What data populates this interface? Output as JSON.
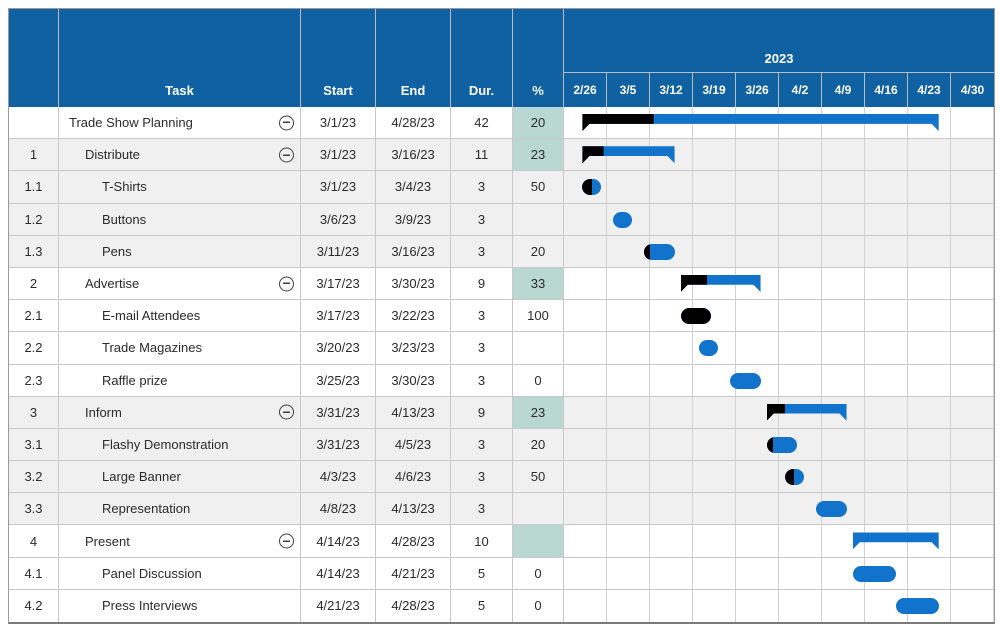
{
  "header": {
    "id": "",
    "task": "Task",
    "start": "Start",
    "end": "End",
    "dur": "Dur.",
    "pct": "%"
  },
  "timeline": {
    "year": "2023",
    "weeks": [
      "2/26",
      "3/5",
      "3/12",
      "3/19",
      "3/26",
      "4/2",
      "4/9",
      "4/16",
      "4/23",
      "4/30"
    ],
    "days_total": 70
  },
  "colors": {
    "header_blue": "#1061a1",
    "bar_blue": "#1173cb",
    "progress_black": "#000000",
    "pct_teal": "#b9d8d2",
    "row_shade": "#f0f0f0"
  },
  "chart_data": {
    "type": "gantt",
    "title": "2023",
    "week_labels": [
      "2/26",
      "3/5",
      "3/12",
      "3/19",
      "3/26",
      "4/2",
      "4/9",
      "4/16",
      "4/23",
      "4/30"
    ],
    "tasks": [
      {
        "id": "",
        "name": "Trade Show Planning",
        "indent": 0,
        "collapsible": true,
        "start": "3/1/23",
        "end": "4/28/23",
        "dur": "42",
        "pct": "20",
        "pct_teal": true,
        "shade": false,
        "bar": {
          "type": "summary",
          "from_day": 3,
          "to_day": 61,
          "progress": 20
        }
      },
      {
        "id": "1",
        "name": "Distribute",
        "indent": 1,
        "collapsible": true,
        "start": "3/1/23",
        "end": "3/16/23",
        "dur": "11",
        "pct": "23",
        "pct_teal": true,
        "shade": true,
        "bar": {
          "type": "summary",
          "from_day": 3,
          "to_day": 18,
          "progress": 23
        }
      },
      {
        "id": "1.1",
        "name": "T-Shirts",
        "indent": 2,
        "collapsible": false,
        "start": "3/1/23",
        "end": "3/4/23",
        "dur": "3",
        "pct": "50",
        "pct_teal": false,
        "shade": true,
        "bar": {
          "type": "pill",
          "from_day": 3,
          "to_day": 6,
          "progress": 50
        }
      },
      {
        "id": "1.2",
        "name": "Buttons",
        "indent": 2,
        "collapsible": false,
        "start": "3/6/23",
        "end": "3/9/23",
        "dur": "3",
        "pct": "",
        "pct_teal": false,
        "shade": true,
        "bar": {
          "type": "pill",
          "from_day": 8,
          "to_day": 11,
          "progress": 0
        }
      },
      {
        "id": "1.3",
        "name": "Pens",
        "indent": 2,
        "collapsible": false,
        "start": "3/11/23",
        "end": "3/16/23",
        "dur": "3",
        "pct": "20",
        "pct_teal": false,
        "shade": true,
        "bar": {
          "type": "pill",
          "from_day": 13,
          "to_day": 18,
          "progress": 20
        }
      },
      {
        "id": "2",
        "name": "Advertise",
        "indent": 1,
        "collapsible": true,
        "start": "3/17/23",
        "end": "3/30/23",
        "dur": "9",
        "pct": "33",
        "pct_teal": true,
        "shade": false,
        "bar": {
          "type": "summary",
          "from_day": 19,
          "to_day": 32,
          "progress": 33
        }
      },
      {
        "id": "2.1",
        "name": "E-mail Attendees",
        "indent": 2,
        "collapsible": false,
        "start": "3/17/23",
        "end": "3/22/23",
        "dur": "3",
        "pct": "100",
        "pct_teal": false,
        "shade": false,
        "bar": {
          "type": "pill",
          "from_day": 19,
          "to_day": 24,
          "progress": 100
        }
      },
      {
        "id": "2.2",
        "name": "Trade Magazines",
        "indent": 2,
        "collapsible": false,
        "start": "3/20/23",
        "end": "3/23/23",
        "dur": "3",
        "pct": "",
        "pct_teal": false,
        "shade": false,
        "bar": {
          "type": "pill",
          "from_day": 22,
          "to_day": 25,
          "progress": 0
        }
      },
      {
        "id": "2.3",
        "name": "Raffle prize",
        "indent": 2,
        "collapsible": false,
        "start": "3/25/23",
        "end": "3/30/23",
        "dur": "3",
        "pct": "0",
        "pct_teal": false,
        "shade": false,
        "bar": {
          "type": "pill",
          "from_day": 27,
          "to_day": 32,
          "progress": 0
        }
      },
      {
        "id": "3",
        "name": "Inform",
        "indent": 1,
        "collapsible": true,
        "start": "3/31/23",
        "end": "4/13/23",
        "dur": "9",
        "pct": "23",
        "pct_teal": true,
        "shade": true,
        "bar": {
          "type": "summary",
          "from_day": 33,
          "to_day": 46,
          "progress": 23
        }
      },
      {
        "id": "3.1",
        "name": "Flashy Demonstration",
        "indent": 2,
        "collapsible": false,
        "start": "3/31/23",
        "end": "4/5/23",
        "dur": "3",
        "pct": "20",
        "pct_teal": false,
        "shade": true,
        "bar": {
          "type": "pill",
          "from_day": 33,
          "to_day": 38,
          "progress": 20
        }
      },
      {
        "id": "3.2",
        "name": "Large Banner",
        "indent": 2,
        "collapsible": false,
        "start": "4/3/23",
        "end": "4/6/23",
        "dur": "3",
        "pct": "50",
        "pct_teal": false,
        "shade": true,
        "bar": {
          "type": "pill",
          "from_day": 36,
          "to_day": 39,
          "progress": 50
        }
      },
      {
        "id": "3.3",
        "name": "Representation",
        "indent": 2,
        "collapsible": false,
        "start": "4/8/23",
        "end": "4/13/23",
        "dur": "3",
        "pct": "",
        "pct_teal": false,
        "shade": true,
        "bar": {
          "type": "pill",
          "from_day": 41,
          "to_day": 46,
          "progress": 0
        }
      },
      {
        "id": "4",
        "name": "Present",
        "indent": 1,
        "collapsible": true,
        "start": "4/14/23",
        "end": "4/28/23",
        "dur": "10",
        "pct": "",
        "pct_teal": true,
        "shade": false,
        "bar": {
          "type": "summary",
          "from_day": 47,
          "to_day": 61,
          "progress": 0
        }
      },
      {
        "id": "4.1",
        "name": "Panel Discussion",
        "indent": 2,
        "collapsible": false,
        "start": "4/14/23",
        "end": "4/21/23",
        "dur": "5",
        "pct": "0",
        "pct_teal": false,
        "shade": false,
        "bar": {
          "type": "pill",
          "from_day": 47,
          "to_day": 54,
          "progress": 0
        }
      },
      {
        "id": "4.2",
        "name": "Press Interviews",
        "indent": 2,
        "collapsible": false,
        "start": "4/21/23",
        "end": "4/28/23",
        "dur": "5",
        "pct": "0",
        "pct_teal": false,
        "shade": false,
        "bar": {
          "type": "pill",
          "from_day": 54,
          "to_day": 61,
          "progress": 0
        }
      }
    ]
  }
}
